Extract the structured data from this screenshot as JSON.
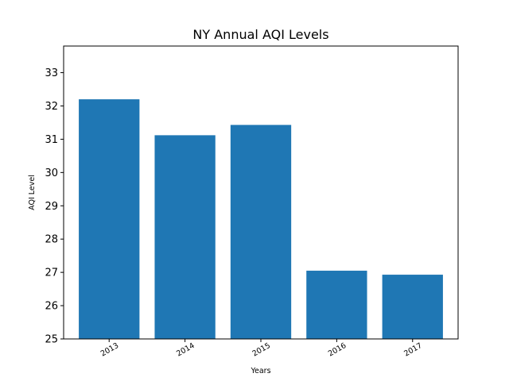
{
  "chart_data": {
    "type": "bar",
    "title": "NY Annual AQI Levels",
    "xlabel": "Years",
    "ylabel": "AQI Level",
    "categories": [
      "2013",
      "2014",
      "2015",
      "2016",
      "2017"
    ],
    "values": [
      32.2,
      31.12,
      31.43,
      27.05,
      26.93
    ],
    "ylim": [
      25,
      33.8
    ],
    "yticks": [
      "25",
      "26",
      "27",
      "28",
      "29",
      "30",
      "31",
      "32",
      "33"
    ],
    "xtick_rotation": 30,
    "bar_color": "#1f77b4",
    "grid": false,
    "legend": "none"
  }
}
